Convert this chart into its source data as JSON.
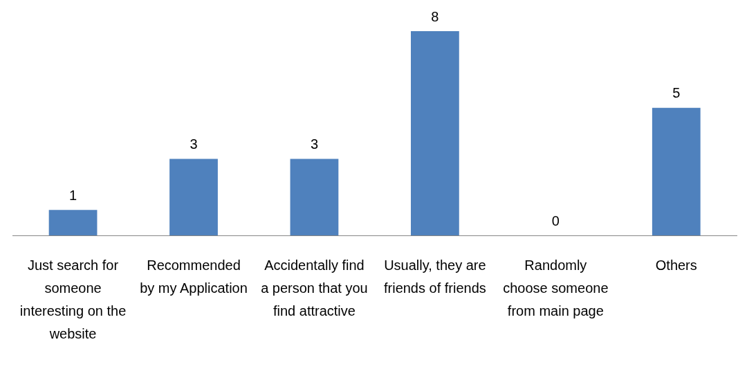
{
  "chart_data": {
    "type": "bar",
    "categories": [
      "Just search for someone interesting on the website",
      "Recommended by my Application",
      "Accidentally find a person that you find attractive",
      "Usually, they are friends of friends",
      "Randomly choose someone from main page",
      "Others"
    ],
    "values": [
      1,
      3,
      3,
      8,
      0,
      5
    ],
    "color": "#4f81bd",
    "data_labels": true,
    "grid": false,
    "legend": false
  }
}
